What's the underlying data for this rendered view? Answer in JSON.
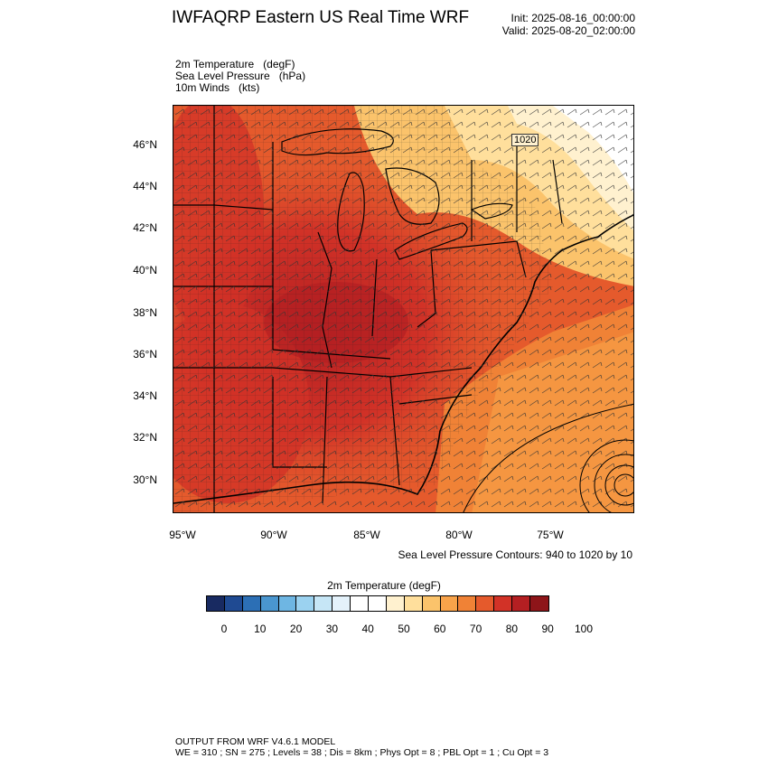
{
  "header": {
    "title": "IWFAQRP Eastern US Real Time WRF",
    "init": "Init: 2025-08-16_00:00:00",
    "valid": "Valid: 2025-08-20_02:00:00"
  },
  "fields": {
    "line1": "2m Temperature   (degF)",
    "line2": "Sea Level Pressure   (hPa)",
    "line3": "10m Winds   (kts)"
  },
  "map": {
    "lat_labels": [
      "46°N",
      "44°N",
      "42°N",
      "40°N",
      "38°N",
      "36°N",
      "34°N",
      "32°N",
      "30°N"
    ],
    "lon_labels": [
      "95°W",
      "90°W",
      "85°W",
      "80°W",
      "75°W"
    ],
    "pressure_label": "1020",
    "contour_note": "Sea Level Pressure Contours: 940 to 1020 by 10"
  },
  "colorbar": {
    "title": "2m Temperature  (degF)",
    "colors": [
      "#182a61",
      "#1f4a92",
      "#2c6fb5",
      "#4a96cf",
      "#6eb6e3",
      "#9bd2f0",
      "#c6e6f6",
      "#e4f2fb",
      "#ffffff",
      "#ffffff",
      "#fff1cf",
      "#ffdf9c",
      "#fbc36b",
      "#f8a34a",
      "#f08236",
      "#e55a2c",
      "#d23227",
      "#b41f22",
      "#8e1519"
    ],
    "ticks": [
      "0",
      "10",
      "20",
      "30",
      "40",
      "50",
      "60",
      "70",
      "80",
      "90",
      "100"
    ]
  },
  "footer": {
    "line1": "OUTPUT FROM WRF V4.6.1 MODEL",
    "line2": "WE = 310 ; SN = 275 ; Levels = 38 ; Dis = 8km ; Phys Opt = 8 ; PBL Opt = 1 ; Cu Opt = 3"
  }
}
